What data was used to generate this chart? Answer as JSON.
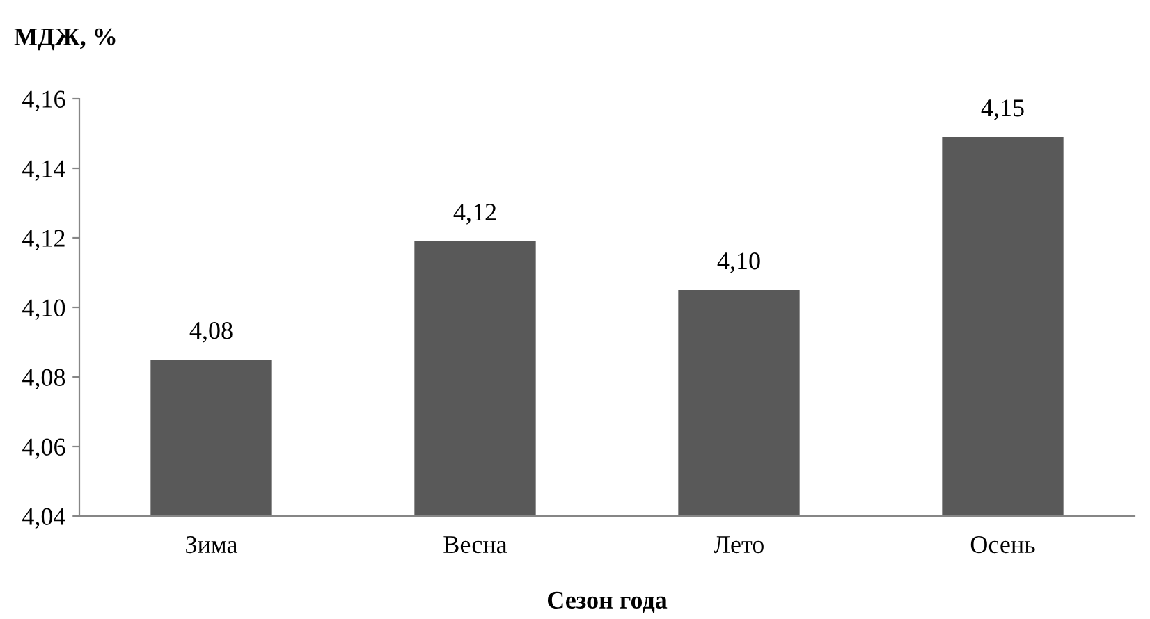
{
  "chart_data": {
    "type": "bar",
    "ylabel": "МДЖ, %",
    "xlabel": "Сезон года",
    "categories": [
      "Зима",
      "Весна",
      "Лето",
      "Осень"
    ],
    "values": [
      4.085,
      4.119,
      4.105,
      4.149
    ],
    "value_labels": [
      "4,08",
      "4,12",
      "4,10",
      "4,15"
    ],
    "color": "#595959",
    "ylim": [
      4.04,
      4.16
    ],
    "yticks": [
      {
        "value": 4.04,
        "label": "4,04"
      },
      {
        "value": 4.06,
        "label": "4,06"
      },
      {
        "value": 4.08,
        "label": "4,08"
      },
      {
        "value": 4.1,
        "label": "4,10"
      },
      {
        "value": 4.12,
        "label": "4,12"
      },
      {
        "value": 4.14,
        "label": "4,14"
      },
      {
        "value": 4.16,
        "label": "4,16"
      }
    ],
    "grid": false,
    "legend": false
  }
}
